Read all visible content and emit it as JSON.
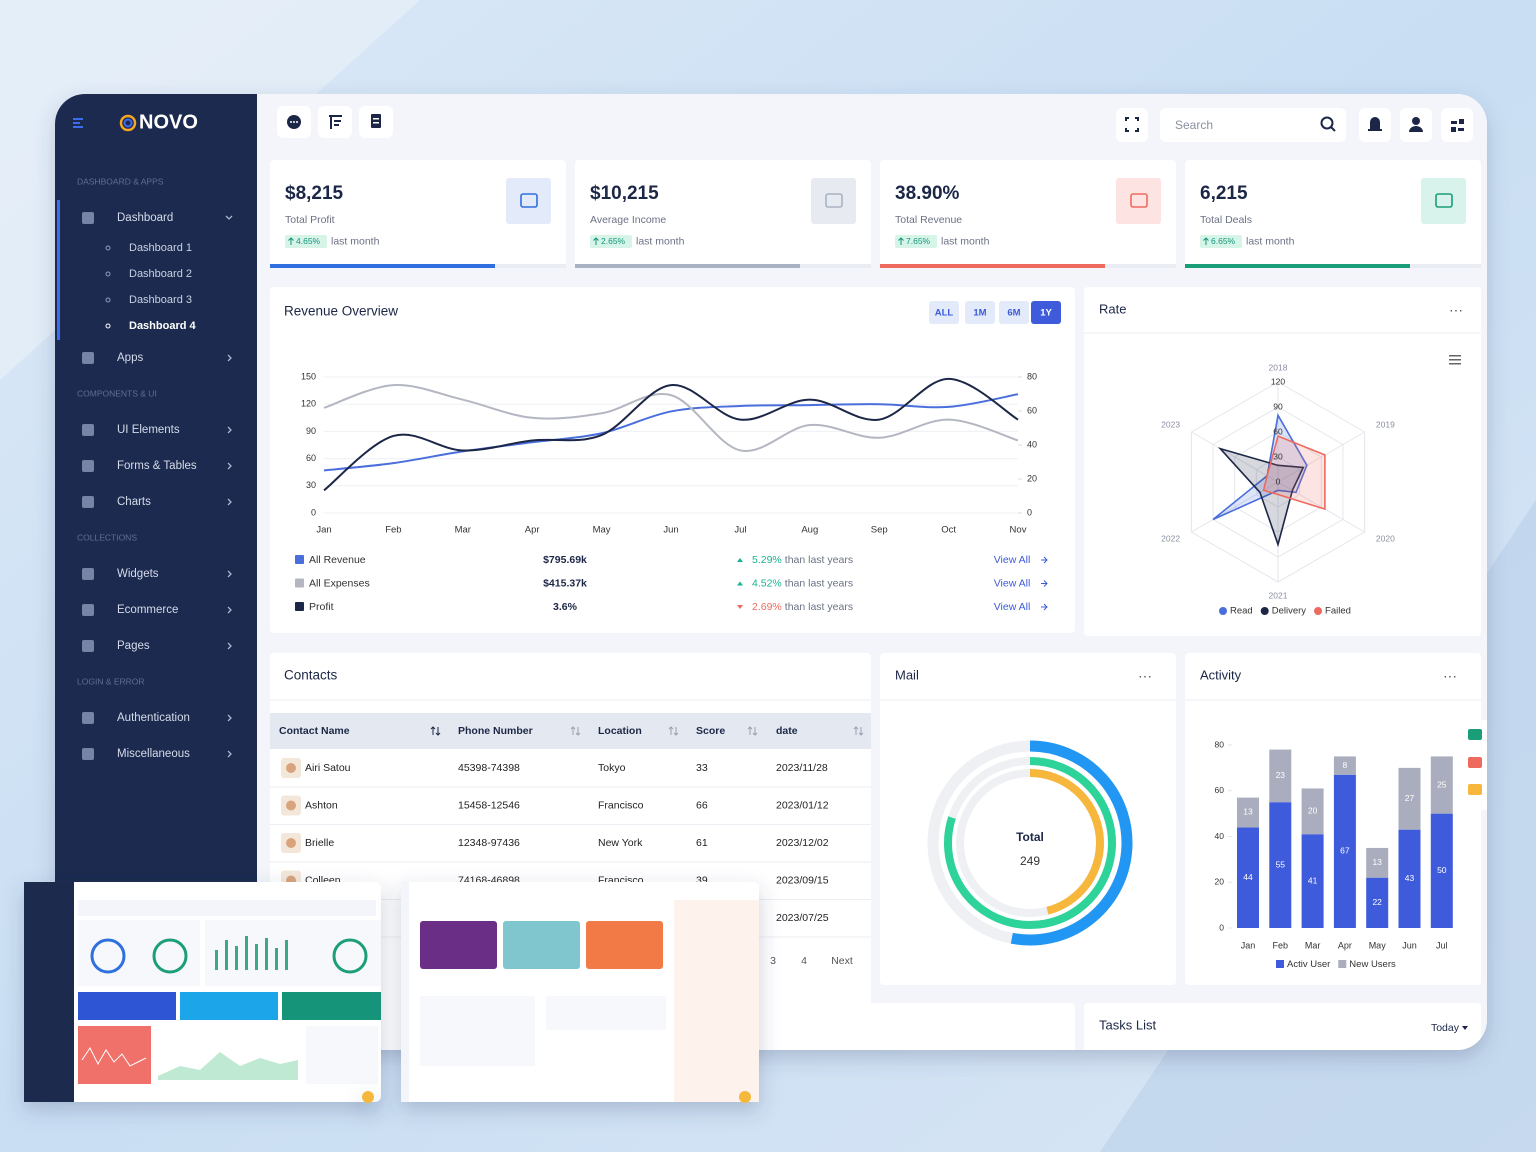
{
  "sidebar": {
    "brand": "NOVO",
    "active": "Dashboard 4",
    "sections": [
      {
        "title": "DASHBOARD & APPS",
        "items": [
          {
            "label": "Dashboard",
            "children": [
              "Dashboard 1",
              "Dashboard 2",
              "Dashboard 3",
              "Dashboard 4"
            ]
          },
          {
            "label": "Apps"
          }
        ]
      },
      {
        "title": "COMPONENTS & UI",
        "items": [
          {
            "label": "UI Elements"
          },
          {
            "label": "Forms & Tables"
          },
          {
            "label": "Charts"
          }
        ]
      },
      {
        "title": "COLLECTIONS",
        "items": [
          {
            "label": "Widgets"
          },
          {
            "label": "Ecommerce"
          },
          {
            "label": "Pages"
          }
        ]
      },
      {
        "title": "LOGIN & ERROR",
        "items": [
          {
            "label": "Authentication"
          },
          {
            "label": "Miscellaneous"
          }
        ]
      }
    ]
  },
  "topbar": {
    "search_placeholder": "Search"
  },
  "stats": [
    {
      "value": "$8,215",
      "label": "Total Profit",
      "change": "4.65%",
      "period": "last month",
      "color": "#2f6fde",
      "tint": "#e3ebfa"
    },
    {
      "value": "$10,215",
      "label": "Average Income",
      "change": "2.65%",
      "period": "last month",
      "color": "#a9b2c3",
      "tint": "#e7ebf1"
    },
    {
      "value": "38.90%",
      "label": "Total Revenue",
      "change": "7.65%",
      "period": "last month",
      "color": "#ee6a5f",
      "tint": "#fde4e2"
    },
    {
      "value": "6,215",
      "label": "Total Deals",
      "change": "6.65%",
      "period": "last month",
      "color": "#1a9e7a",
      "tint": "#d7f3eb"
    }
  ],
  "revenue_overview": {
    "type": "line",
    "title": "Revenue Overview",
    "ranges": [
      "ALL",
      "1M",
      "6M",
      "1Y"
    ],
    "active_range": "1Y",
    "categories": [
      "Jan",
      "Feb",
      "Mar",
      "Apr",
      "May",
      "Jun",
      "Jul",
      "Aug",
      "Sep",
      "Oct",
      "Nov"
    ],
    "ylim": [
      0,
      150
    ],
    "yticks": [
      0,
      30,
      60,
      90,
      120,
      150
    ],
    "y2lim": [
      0,
      80
    ],
    "y2ticks": [
      0,
      20,
      40,
      60,
      80
    ],
    "grid": true,
    "series": [
      {
        "name": "All Revenue",
        "color": "#4a6fdc",
        "values": [
          47,
          55,
          68,
          78,
          88,
          112,
          118,
          119,
          120,
          117,
          131
        ]
      },
      {
        "name": "All Expenses",
        "color": "#b4b7c2",
        "values": [
          116,
          141,
          125,
          105,
          110,
          130,
          69,
          97,
          83,
          103,
          80
        ]
      },
      {
        "name": "Profit",
        "color": "#1c2747",
        "values": [
          25,
          85,
          69,
          80,
          86,
          141,
          103,
          125,
          103,
          148,
          103
        ]
      }
    ],
    "summary": [
      {
        "amount": "$795.69k",
        "change": "5.29%",
        "trend": "up",
        "note": "than last years",
        "link": "View All"
      },
      {
        "amount": "$415.37k",
        "change": "4.52%",
        "trend": "up",
        "note": "than last years",
        "link": "View All"
      },
      {
        "amount": "3.6%",
        "change": "2.69%",
        "trend": "down",
        "note": "than last years",
        "link": "View All"
      }
    ]
  },
  "rate": {
    "type": "radar",
    "title": "Rate",
    "axes": [
      "2018",
      "2019",
      "2020",
      "2021",
      "2022",
      "2023"
    ],
    "rlim": [
      0,
      120
    ],
    "rticks": [
      0,
      30,
      60,
      90,
      120
    ],
    "series": [
      {
        "name": "Read",
        "color": "#4a6fdc",
        "values": [
          80,
          40,
          25,
          10,
          90,
          15
        ]
      },
      {
        "name": "Delivery",
        "color": "#1c2747",
        "values": [
          20,
          35,
          20,
          75,
          25,
          80
        ]
      },
      {
        "name": "Failed",
        "color": "#ee6a5f",
        "values": [
          55,
          65,
          65,
          15,
          20,
          15
        ]
      }
    ]
  },
  "contacts": {
    "title": "Contacts",
    "columns": [
      "Contact Name",
      "Phone Number",
      "Location",
      "Score",
      "date"
    ],
    "rows": [
      [
        "Airi Satou",
        "45398-74398",
        "Tokyo",
        "33",
        "2023/11/28"
      ],
      [
        "Ashton",
        "15458-12546",
        "Francisco",
        "66",
        "2023/01/12"
      ],
      [
        "Brielle",
        "12348-97436",
        "New York",
        "61",
        "2023/12/02"
      ],
      [
        "Colleen",
        "74168-46898",
        "Francisco",
        "39",
        "2023/09/15"
      ],
      [
        null,
        null,
        null,
        null,
        "2023/07/25"
      ]
    ],
    "pagination": [
      "3",
      "4",
      "Next"
    ]
  },
  "mail": {
    "type": "radial_bar",
    "title": "Mail",
    "total_label": "Total",
    "total": 249,
    "rlim": [
      0,
      100
    ],
    "values": [
      53,
      80,
      46
    ],
    "colors": [
      "#2196f3",
      "#2ed39a",
      "#f6b73c"
    ]
  },
  "activity": {
    "type": "bar",
    "stacked": true,
    "title": "Activity",
    "categories": [
      "Jan",
      "Feb",
      "Mar",
      "Apr",
      "May",
      "Jun",
      "Jul"
    ],
    "ylim": [
      0,
      80
    ],
    "yticks": [
      0,
      20,
      40,
      60,
      80
    ],
    "series": [
      {
        "name": "Activ User",
        "color": "#3d5bdb",
        "values": [
          44,
          55,
          41,
          67,
          22,
          43,
          50
        ]
      },
      {
        "name": "New Users",
        "color": "#a9adbd",
        "values": [
          13,
          23,
          20,
          8,
          13,
          27,
          25
        ]
      }
    ]
  },
  "tasks": {
    "title": "Tasks List",
    "filter": "Today"
  }
}
